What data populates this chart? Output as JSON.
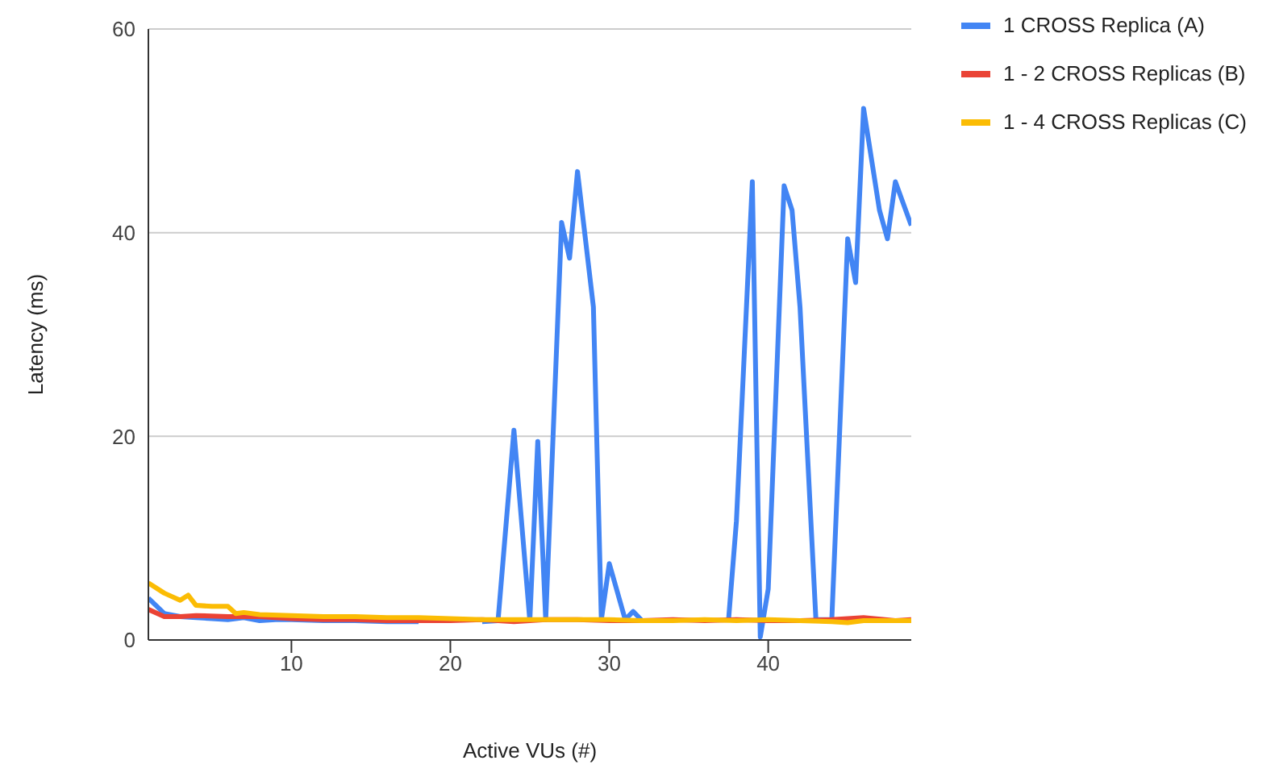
{
  "chart_data": {
    "type": "line",
    "xlabel": "Active VUs (#)",
    "ylabel": "Latency (ms)",
    "xlim": [
      1,
      49
    ],
    "xticks": [
      10,
      20,
      30,
      40
    ],
    "ylim": [
      0,
      60
    ],
    "yticks": [
      0,
      20,
      40,
      60
    ],
    "grid": "y",
    "legend": "top right",
    "marker": "none",
    "line_style": "solid",
    "series": [
      {
        "name": "1 CROSS Replica (A)",
        "color": "#4285f4",
        "x": [
          1,
          2,
          3,
          4,
          5,
          6,
          7,
          8,
          9,
          10,
          12,
          14,
          16,
          18,
          20,
          22,
          23,
          24,
          25,
          25.5,
          26,
          27,
          27.5,
          28,
          29,
          29.5,
          30,
          31,
          31.5,
          32,
          34,
          36,
          37.5,
          38,
          39,
          39.5,
          40,
          41,
          41.5,
          42,
          43,
          44,
          45,
          45.5,
          46,
          47,
          47.5,
          48,
          49
        ],
        "values": [
          4.1,
          2.6,
          2.3,
          2.2,
          2.1,
          2.0,
          2.2,
          1.9,
          2.0,
          2.0,
          1.9,
          1.9,
          1.8,
          1.8,
          null,
          1.8,
          1.9,
          20.6,
          1.9,
          19.5,
          2,
          41,
          37.5,
          46,
          32.7,
          2,
          7.5,
          2,
          2.8,
          2,
          null,
          null,
          1.9,
          11.7,
          45,
          0.3,
          5,
          44.6,
          42.2,
          32.7,
          2,
          2,
          39.4,
          35.1,
          52.2,
          42.2,
          39.4,
          45,
          40.7
        ]
      },
      {
        "name": "1 - 2 CROSS Replicas (B)",
        "color": "#ea4335",
        "x": [
          1,
          2,
          3,
          4,
          6,
          8,
          10,
          12,
          14,
          16,
          18,
          20,
          22,
          24,
          26,
          28,
          30,
          32,
          34,
          36,
          38,
          40,
          42,
          44,
          46,
          48,
          49
        ],
        "values": [
          3.0,
          2.3,
          2.3,
          2.4,
          2.3,
          2.3,
          2.1,
          2.0,
          2.0,
          1.9,
          1.9,
          1.9,
          2.0,
          1.8,
          2.0,
          2.0,
          1.9,
          1.9,
          2.0,
          1.9,
          2.0,
          1.9,
          1.9,
          2.0,
          2.2,
          1.9,
          2.0
        ]
      },
      {
        "name": "1 - 4 CROSS Replicas (C)",
        "color": "#fbbc04",
        "x": [
          1,
          2,
          3,
          3.5,
          4,
          5,
          6,
          6.5,
          7,
          8,
          10,
          12,
          14,
          16,
          18,
          20,
          22,
          24,
          26,
          28,
          30,
          32,
          34,
          36,
          38,
          40,
          42,
          44,
          45,
          46,
          48,
          49
        ],
        "values": [
          5.6,
          4.6,
          3.9,
          4.4,
          3.4,
          3.3,
          3.3,
          2.6,
          2.7,
          2.5,
          2.4,
          2.3,
          2.3,
          2.2,
          2.2,
          2.1,
          2.0,
          2.0,
          2.0,
          2.0,
          2.0,
          1.9,
          1.9,
          2.0,
          1.9,
          2.0,
          1.9,
          1.8,
          1.7,
          1.9,
          1.9,
          1.9
        ]
      }
    ]
  }
}
